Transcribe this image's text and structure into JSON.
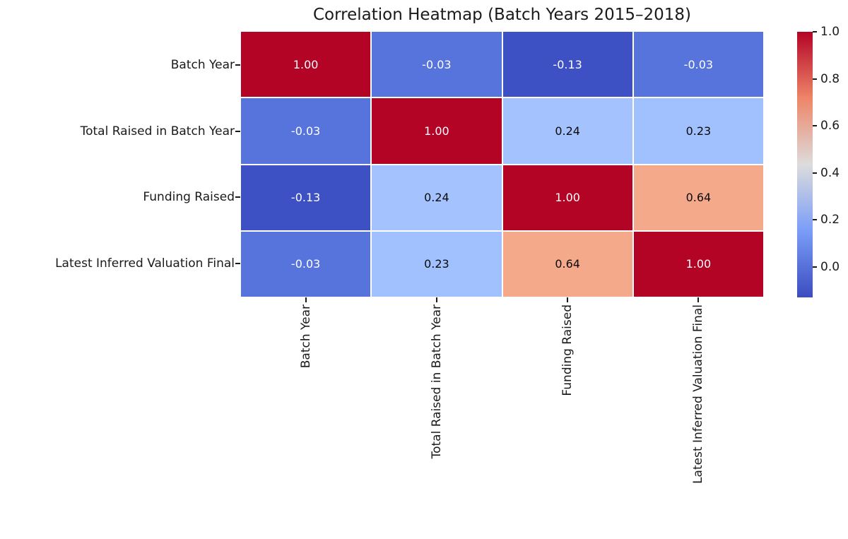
{
  "figure": {
    "title": "Correlation Heatmap (Batch Years 2015–2018)"
  },
  "chart_data": {
    "type": "heatmap",
    "title": "Correlation Heatmap (Batch Years 2015–2018)",
    "labels": [
      "Batch Year",
      "Total Raised in Batch Year",
      "Funding Raised",
      "Latest Inferred Valuation Final"
    ],
    "matrix": [
      [
        1.0,
        -0.03,
        -0.13,
        -0.03
      ],
      [
        -0.03,
        1.0,
        0.24,
        0.23
      ],
      [
        -0.13,
        0.24,
        1.0,
        0.64
      ],
      [
        -0.03,
        0.23,
        0.64,
        1.0
      ]
    ],
    "annotations": [
      [
        "1.00",
        "-0.03",
        "-0.13",
        "-0.03"
      ],
      [
        "-0.03",
        "1.00",
        "0.24",
        "0.23"
      ],
      [
        "-0.13",
        "0.24",
        "1.00",
        "0.64"
      ],
      [
        "-0.03",
        "0.23",
        "0.64",
        "1.00"
      ]
    ],
    "cell_colors": [
      [
        "#b40426",
        "#5674dc",
        "#3d50c4",
        "#5674dc"
      ],
      [
        "#5674dc",
        "#b40426",
        "#a4c3fe",
        "#a1c1fe"
      ],
      [
        "#3d50c4",
        "#a4c3fe",
        "#b40426",
        "#f5a98b"
      ],
      [
        "#5674dc",
        "#a1c1fe",
        "#f5a98b",
        "#b40426"
      ]
    ],
    "cell_text_colors": [
      [
        "#ffffff",
        "#ffffff",
        "#ffffff",
        "#ffffff"
      ],
      [
        "#ffffff",
        "#ffffff",
        "#0a0a0a",
        "#0a0a0a"
      ],
      [
        "#ffffff",
        "#0a0a0a",
        "#ffffff",
        "#0a0a0a"
      ],
      [
        "#ffffff",
        "#0a0a0a",
        "#0a0a0a",
        "#ffffff"
      ]
    ],
    "colormap": "coolwarm",
    "vmin": -0.13,
    "vmax": 1.0,
    "grid_line_color": "#ffffff",
    "colorbar": {
      "tick_labels": [
        "1.0",
        "0.8",
        "0.6",
        "0.4",
        "0.2",
        "0.0"
      ],
      "tick_values": [
        1.0,
        0.8,
        0.6,
        0.4,
        0.2,
        0.0
      ],
      "gradient_top_to_bottom": [
        "#b40426",
        "#ee8568",
        "#dddcdc",
        "#7a9df8",
        "#3b4cc0"
      ]
    },
    "legend_position": "right-colorbar",
    "grid": false
  }
}
